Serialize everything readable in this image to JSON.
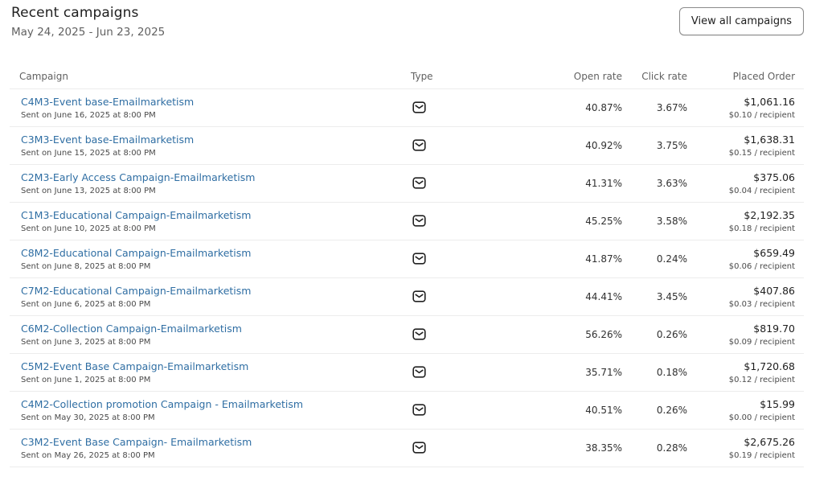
{
  "header": {
    "title": "Recent campaigns",
    "date_range": "May 24, 2025 - Jun 23, 2025",
    "view_all_label": "View all campaigns"
  },
  "table": {
    "columns": {
      "campaign": "Campaign",
      "type": "Type",
      "open_rate": "Open rate",
      "click_rate": "Click rate",
      "placed_order": "Placed Order"
    },
    "type_icon": "email-icon",
    "rows": [
      {
        "name": "C4M3-Event base-Emailmarketism",
        "sent": "Sent on June 16, 2025 at 8:00 PM",
        "open_rate": "40.87%",
        "click_rate": "3.67%",
        "amount": "$1,061.16",
        "per_recipient": "$0.10 / recipient"
      },
      {
        "name": "C3M3-Event base-Emailmarketism",
        "sent": "Sent on June 15, 2025 at 8:00 PM",
        "open_rate": "40.92%",
        "click_rate": "3.75%",
        "amount": "$1,638.31",
        "per_recipient": "$0.15 / recipient"
      },
      {
        "name": "C2M3-Early Access Campaign-Emailmarketism",
        "sent": "Sent on June 13, 2025 at 8:00 PM",
        "open_rate": "41.31%",
        "click_rate": "3.63%",
        "amount": "$375.06",
        "per_recipient": "$0.04 / recipient"
      },
      {
        "name": "C1M3-Educational Campaign-Emailmarketism",
        "sent": "Sent on June 10, 2025 at 8:00 PM",
        "open_rate": "45.25%",
        "click_rate": "3.58%",
        "amount": "$2,192.35",
        "per_recipient": "$0.18 / recipient"
      },
      {
        "name": "C8M2-Educational Campaign-Emailmarketism",
        "sent": "Sent on June 8, 2025 at 8:00 PM",
        "open_rate": "41.87%",
        "click_rate": "0.24%",
        "amount": "$659.49",
        "per_recipient": "$0.06 / recipient"
      },
      {
        "name": "C7M2-Educational Campaign-Emailmarketism",
        "sent": "Sent on June 6, 2025 at 8:00 PM",
        "open_rate": "44.41%",
        "click_rate": "3.45%",
        "amount": "$407.86",
        "per_recipient": "$0.03 / recipient"
      },
      {
        "name": "C6M2-Collection Campaign-Emailmarketism",
        "sent": "Sent on June 3, 2025 at 8:00 PM",
        "open_rate": "56.26%",
        "click_rate": "0.26%",
        "amount": "$819.70",
        "per_recipient": "$0.09 / recipient"
      },
      {
        "name": "C5M2-Event Base Campaign-Emailmarketism",
        "sent": "Sent on June 1, 2025 at 8:00 PM",
        "open_rate": "35.71%",
        "click_rate": "0.18%",
        "amount": "$1,720.68",
        "per_recipient": "$0.12 / recipient"
      },
      {
        "name": "C4M2-Collection promotion Campaign - Emailmarketism",
        "sent": "Sent on May 30, 2025 at 8:00 PM",
        "open_rate": "40.51%",
        "click_rate": "0.26%",
        "amount": "$15.99",
        "per_recipient": "$0.00 / recipient"
      },
      {
        "name": "C3M2-Event Base Campaign- Emailmarketism",
        "sent": "Sent on May 26, 2025 at 8:00 PM",
        "open_rate": "38.35%",
        "click_rate": "0.28%",
        "amount": "$2,675.26",
        "per_recipient": "$0.19 / recipient"
      }
    ]
  }
}
